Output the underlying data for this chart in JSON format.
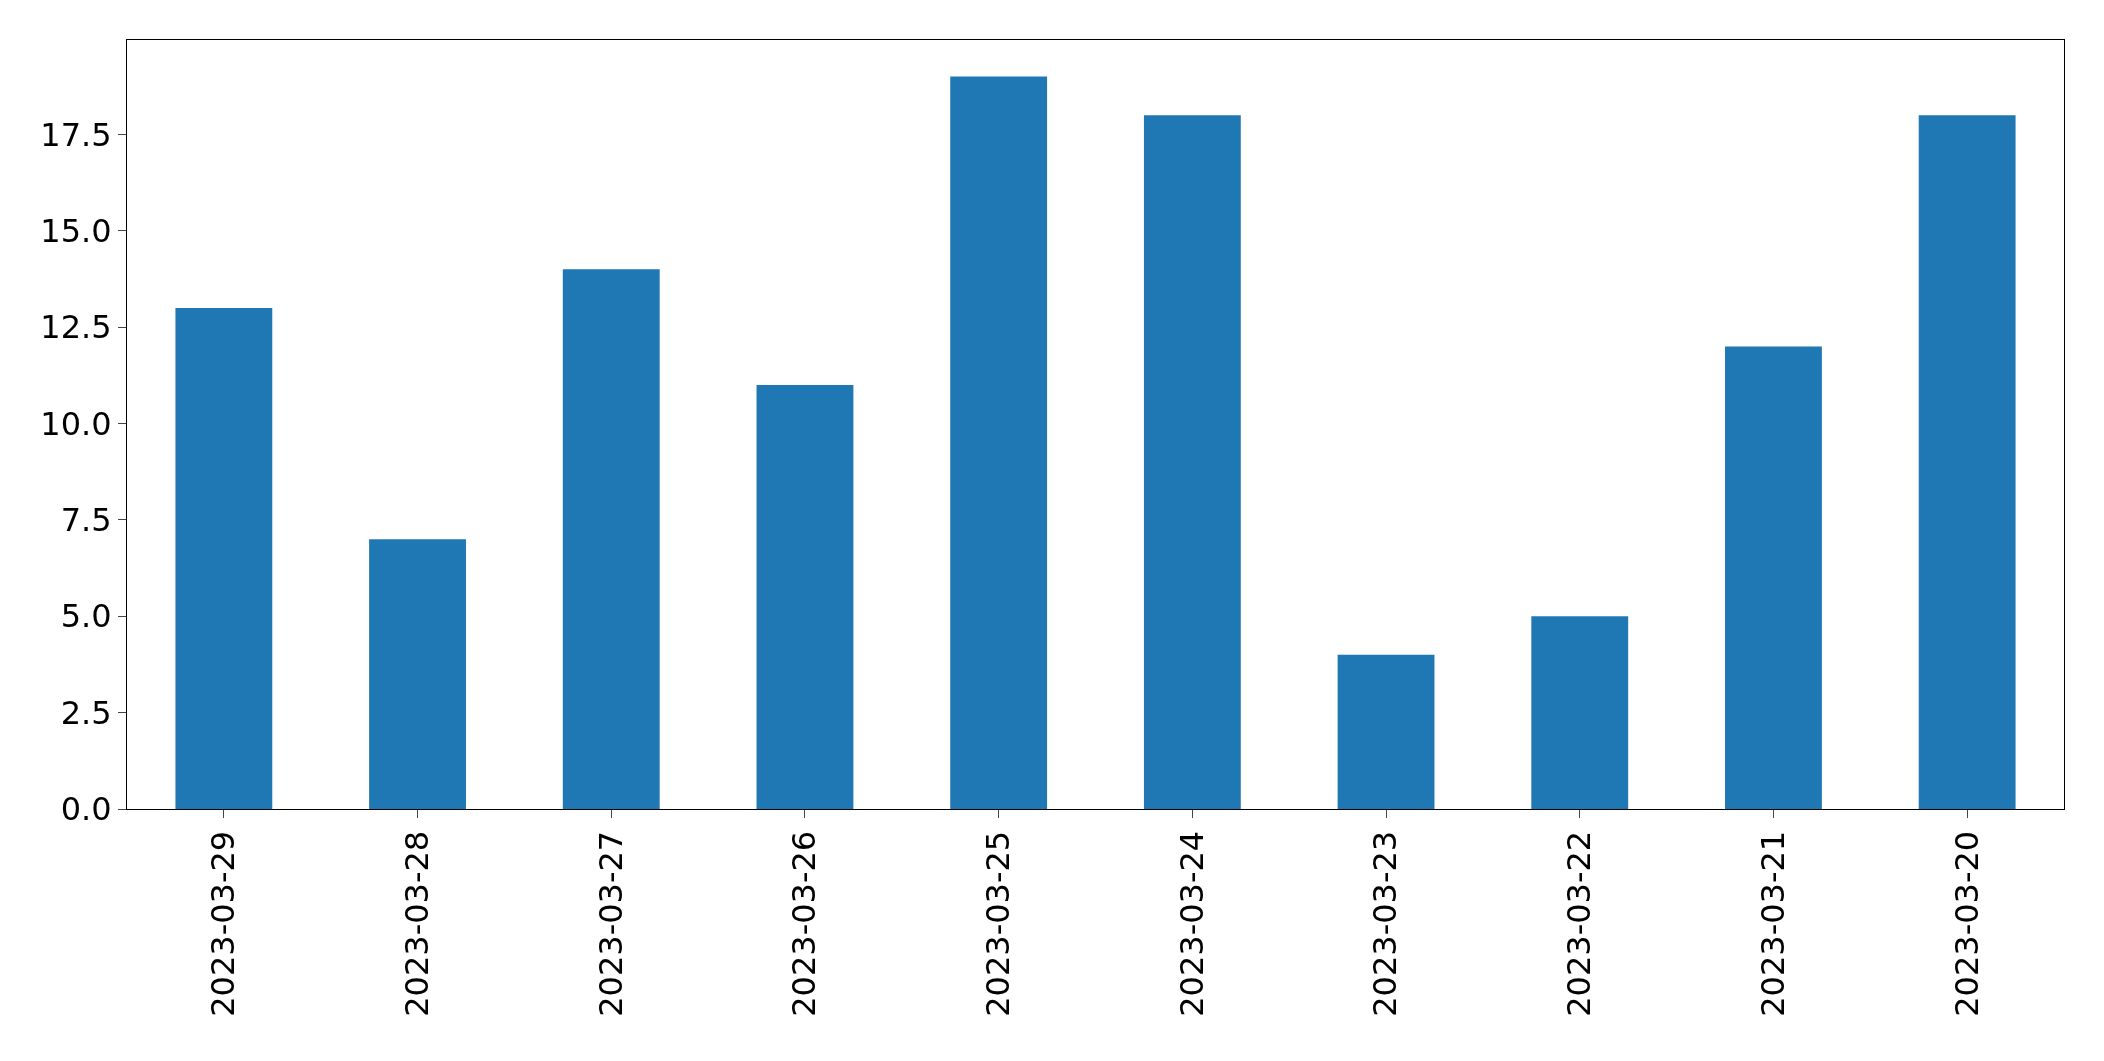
{
  "chart_data": {
    "type": "bar",
    "categories": [
      "2023-03-29",
      "2023-03-28",
      "2023-03-27",
      "2023-03-26",
      "2023-03-25",
      "2023-03-24",
      "2023-03-23",
      "2023-03-22",
      "2023-03-21",
      "2023-03-20"
    ],
    "values": [
      13,
      7,
      14,
      11,
      19,
      18,
      4,
      5,
      12,
      18
    ],
    "color": "#1f77b4",
    "ylim": [
      0,
      19.95
    ],
    "yticks": [
      {
        "value": 0,
        "label": "0.0"
      },
      {
        "value": 2.5,
        "label": "2.5"
      },
      {
        "value": 5,
        "label": "5.0"
      },
      {
        "value": 7.5,
        "label": "7.5"
      },
      {
        "value": 10,
        "label": "10.0"
      },
      {
        "value": 12.5,
        "label": "12.5"
      },
      {
        "value": 15,
        "label": "15.0"
      },
      {
        "value": 17.5,
        "label": "17.5"
      }
    ]
  }
}
